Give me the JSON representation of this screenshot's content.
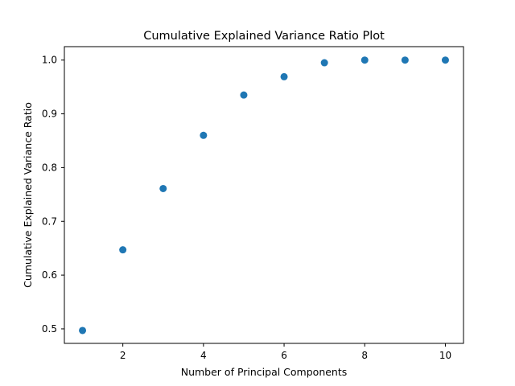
{
  "chart_data": {
    "type": "scatter",
    "title": "Cumulative Explained Variance Ratio Plot",
    "xlabel": "Number of Principal Components",
    "ylabel": "Cumulative Explained Variance Ratio",
    "x": [
      1,
      2,
      3,
      4,
      5,
      6,
      7,
      8,
      9,
      10
    ],
    "y": [
      0.497,
      0.647,
      0.761,
      0.86,
      0.935,
      0.969,
      0.995,
      1.0,
      1.0,
      1.0
    ],
    "xlim": [
      0.55,
      10.45
    ],
    "ylim": [
      0.473,
      1.025
    ],
    "xticks": [
      2,
      4,
      6,
      8,
      10
    ],
    "xtick_labels": [
      "2",
      "4",
      "6",
      "8",
      "10"
    ],
    "yticks": [
      0.5,
      0.6,
      0.7,
      0.8,
      0.9,
      1.0
    ],
    "ytick_labels": [
      "0.5",
      "0.6",
      "0.7",
      "0.8",
      "0.9",
      "1.0"
    ],
    "grid": false,
    "marker_color": "#1f77b4"
  }
}
